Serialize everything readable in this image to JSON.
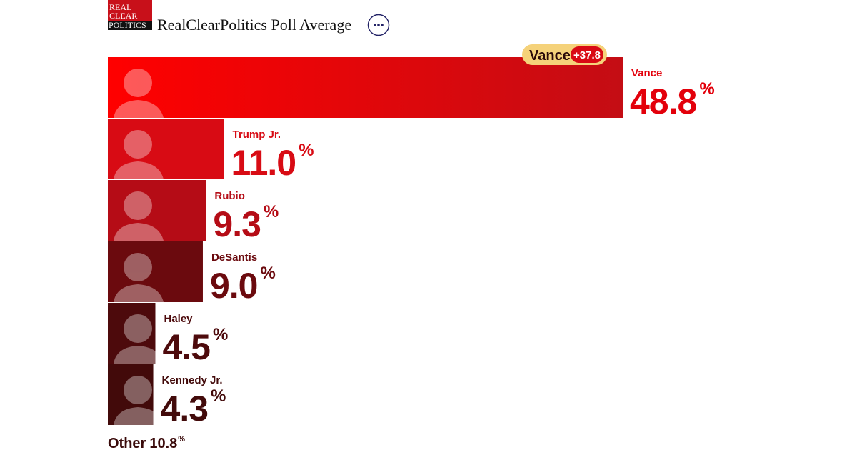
{
  "logo": [
    "REAL",
    "CLEAR",
    "POLITICS"
  ],
  "chart_data": {
    "type": "bar",
    "orientation": "horizontal",
    "title": "RealClearPolitics Poll Average",
    "lead": {
      "name": "Vance",
      "margin_label": "+37.8"
    },
    "categories": [
      "Vance",
      "Trump Jr.",
      "Rubio",
      "DeSantis",
      "Haley",
      "Kennedy Jr."
    ],
    "values": [
      48.8,
      11.0,
      9.3,
      9.0,
      4.5,
      4.3
    ],
    "value_labels": [
      "48.8",
      "11.0",
      "9.3",
      "9.0",
      "4.5",
      "4.3"
    ],
    "unit": "%",
    "colors": [
      "#e3000b",
      "#d80b14",
      "#b50c16",
      "#6b0a0e",
      "#4d0a0c",
      "#420a0a"
    ],
    "xlim": [
      0,
      48.8
    ],
    "other": {
      "label": "Other",
      "value": 10.8
    }
  }
}
